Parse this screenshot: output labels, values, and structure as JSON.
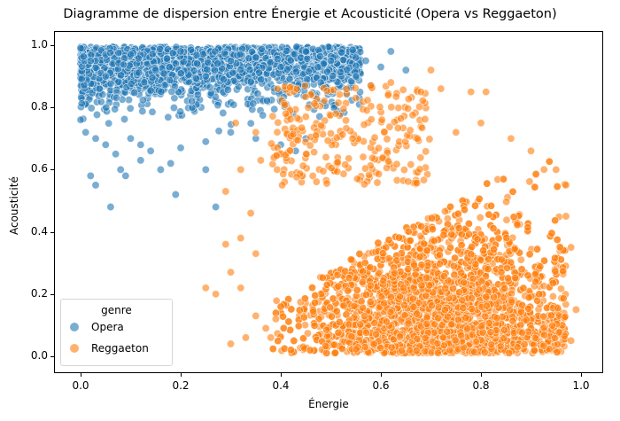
{
  "chart_data": {
    "type": "scatter",
    "title": "Diagramme de dispersion entre Énergie et Acousticité (Opera vs Reggaeton)",
    "xlabel": "Énergie",
    "ylabel": "Acousticité",
    "xlim": [
      -0.05,
      1.04
    ],
    "ylim": [
      -0.04,
      1.04
    ],
    "xticks": [
      "0.0",
      "0.2",
      "0.4",
      "0.6",
      "0.8",
      "1.0"
    ],
    "yticks": [
      "0.0",
      "0.2",
      "0.4",
      "0.6",
      "0.8",
      "1.0"
    ],
    "grid": false,
    "legend": {
      "title": "genre",
      "position": "lower left",
      "entries": [
        "Opera",
        "Reggaeton"
      ]
    },
    "series": [
      {
        "name": "Opera",
        "color": "#1f77b4",
        "alpha": 0.6,
        "density_description": "dense cluster energy 0.0–0.55, acousticness 0.70–1.0; sparse tail down to ~0.48",
        "points": [
          [
            0.0,
            0.99
          ],
          [
            0.02,
            0.95
          ],
          [
            0.05,
            0.9
          ],
          [
            0.1,
            0.97
          ],
          [
            0.15,
            0.92
          ],
          [
            0.2,
            0.98
          ],
          [
            0.25,
            0.9
          ],
          [
            0.3,
            0.95
          ],
          [
            0.35,
            0.96
          ],
          [
            0.4,
            0.93
          ],
          [
            0.45,
            0.98
          ],
          [
            0.5,
            0.95
          ],
          [
            0.55,
            0.96
          ],
          [
            0.0,
            0.76
          ],
          [
            0.01,
            0.72
          ],
          [
            0.03,
            0.7
          ],
          [
            0.05,
            0.68
          ],
          [
            0.07,
            0.65
          ],
          [
            0.1,
            0.7
          ],
          [
            0.12,
            0.63
          ],
          [
            0.14,
            0.66
          ],
          [
            0.18,
            0.62
          ],
          [
            0.2,
            0.67
          ],
          [
            0.25,
            0.69
          ],
          [
            0.3,
            0.72
          ],
          [
            0.35,
            0.7
          ],
          [
            0.4,
            0.68
          ],
          [
            0.43,
            0.66
          ],
          [
            0.02,
            0.58
          ],
          [
            0.03,
            0.55
          ],
          [
            0.06,
            0.48
          ],
          [
            0.09,
            0.58
          ],
          [
            0.19,
            0.52
          ],
          [
            0.27,
            0.48
          ],
          [
            0.25,
            0.6
          ],
          [
            0.12,
            0.68
          ],
          [
            0.16,
            0.6
          ],
          [
            0.08,
            0.6
          ],
          [
            0.5,
            0.85
          ],
          [
            0.52,
            0.78
          ],
          [
            0.55,
            0.9
          ],
          [
            0.57,
            0.95
          ],
          [
            0.6,
            0.93
          ],
          [
            0.62,
            0.98
          ],
          [
            0.65,
            0.92
          ],
          [
            0.58,
            0.87
          ],
          [
            0.45,
            0.7
          ],
          [
            0.4,
            0.82
          ],
          [
            0.48,
            0.88
          ]
        ]
      },
      {
        "name": "Reggaeton",
        "color": "#ff7f0e",
        "alpha": 0.6,
        "density_description": "dense cluster energy 0.45–0.97, acousticness 0.0–0.65; sparse scatter toward low energy / high acousticness",
        "points": [
          [
            0.25,
            0.22
          ],
          [
            0.27,
            0.2
          ],
          [
            0.3,
            0.27
          ],
          [
            0.32,
            0.22
          ],
          [
            0.29,
            0.36
          ],
          [
            0.32,
            0.38
          ],
          [
            0.35,
            0.33
          ],
          [
            0.34,
            0.46
          ],
          [
            0.29,
            0.53
          ],
          [
            0.32,
            0.6
          ],
          [
            0.36,
            0.63
          ],
          [
            0.33,
            0.06
          ],
          [
            0.37,
            0.09
          ],
          [
            0.35,
            0.13
          ],
          [
            0.38,
            0.06
          ],
          [
            0.39,
            0.12
          ],
          [
            0.3,
            0.04
          ],
          [
            0.31,
            0.75
          ],
          [
            0.35,
            0.72
          ],
          [
            0.41,
            0.78
          ],
          [
            0.45,
            0.77
          ],
          [
            0.47,
            0.71
          ],
          [
            0.51,
            0.78
          ],
          [
            0.55,
            0.83
          ],
          [
            0.58,
            0.87
          ],
          [
            0.62,
            0.88
          ],
          [
            0.68,
            0.85
          ],
          [
            0.7,
            0.92
          ],
          [
            0.72,
            0.86
          ],
          [
            0.78,
            0.85
          ],
          [
            0.81,
            0.85
          ],
          [
            0.75,
            0.72
          ],
          [
            0.8,
            0.75
          ],
          [
            0.86,
            0.7
          ],
          [
            0.9,
            0.66
          ],
          [
            0.95,
            0.6
          ],
          [
            0.97,
            0.55
          ],
          [
            0.97,
            0.45
          ],
          [
            0.98,
            0.35
          ],
          [
            0.99,
            0.15
          ],
          [
            0.98,
            0.05
          ]
        ]
      }
    ]
  }
}
